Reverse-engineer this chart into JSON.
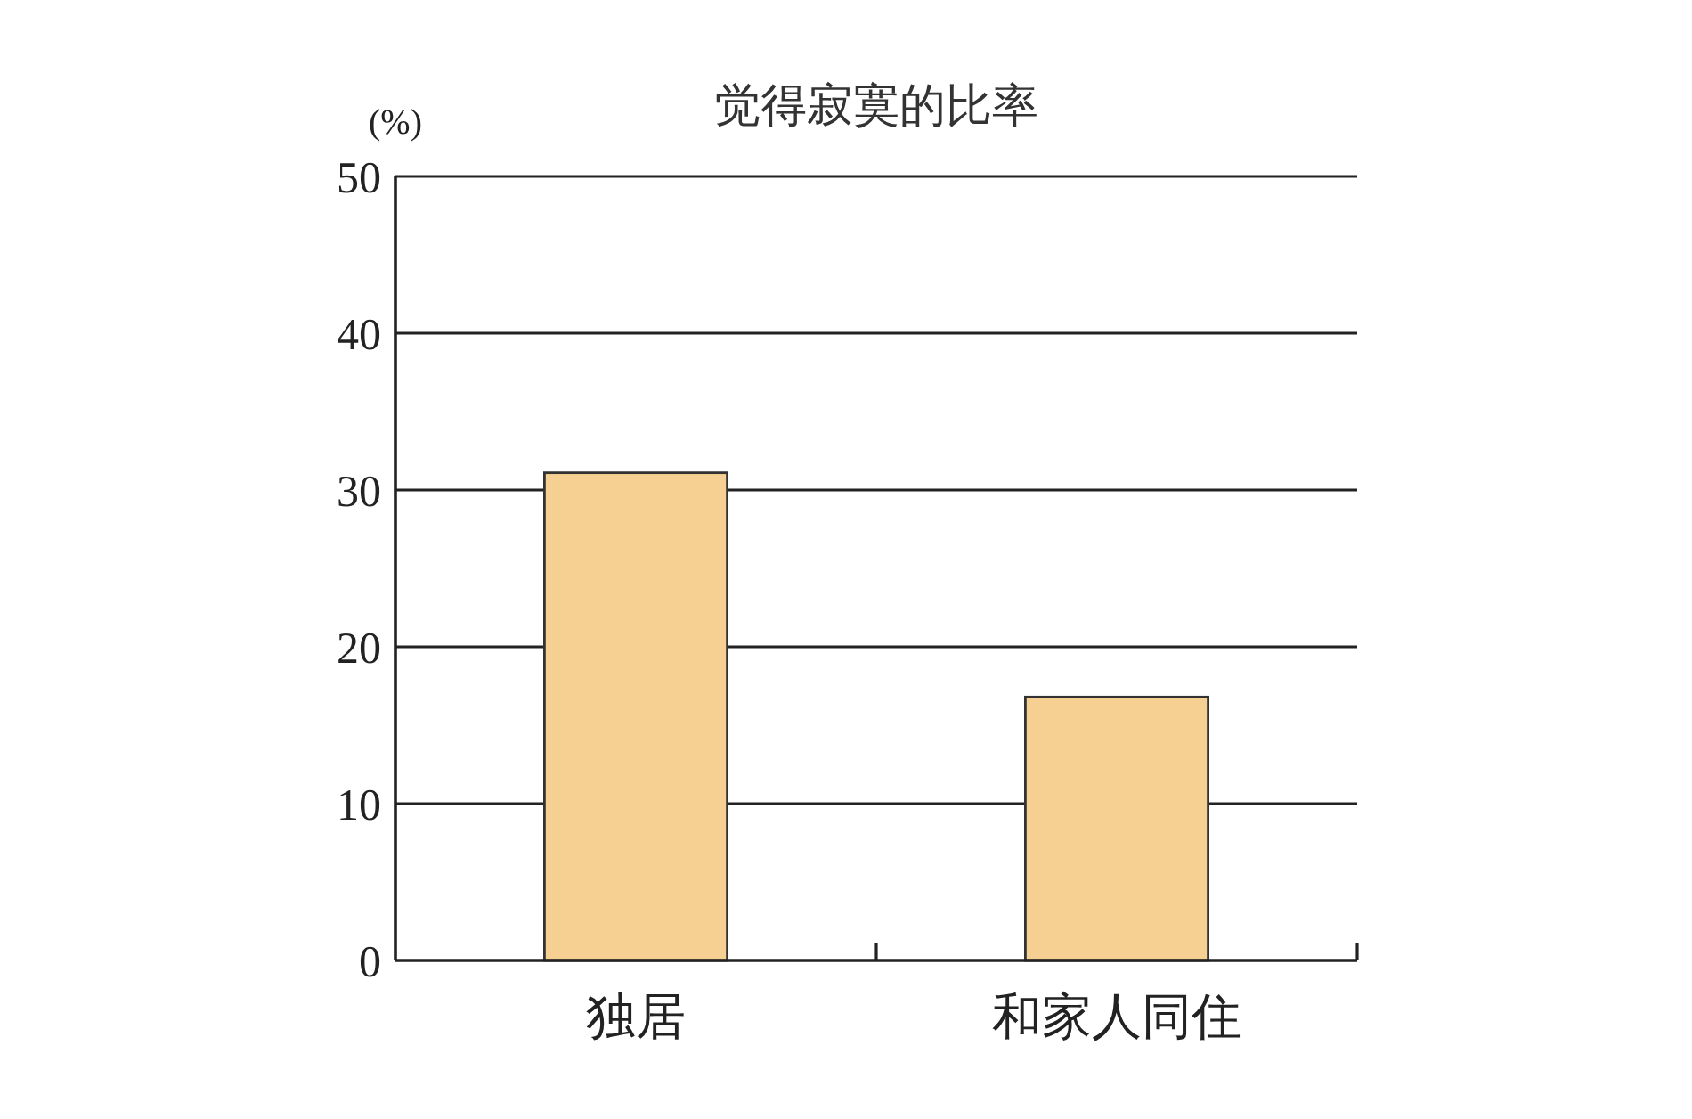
{
  "chart_data": {
    "type": "bar",
    "title": "觉得寂寞的比率",
    "ylabel": "(%)",
    "categories": [
      "独居",
      "和家人同住"
    ],
    "values": [
      31.1,
      16.8
    ],
    "color": "#f5d092",
    "ylim": [
      0,
      50
    ],
    "yticks": [
      0,
      10,
      20,
      30,
      40,
      50
    ],
    "grid": "y"
  }
}
